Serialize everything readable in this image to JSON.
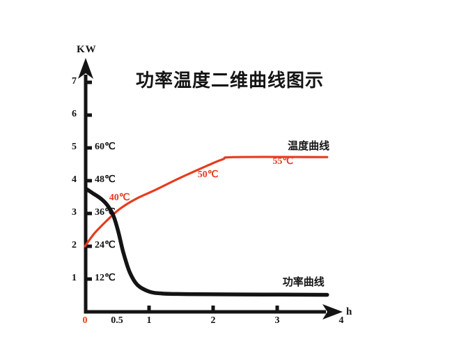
{
  "title": "功率温度二维曲线图示",
  "colors": {
    "temperature": "#e73b1e",
    "power": "#141414",
    "axis": "#141414",
    "background": "#ffffff"
  },
  "chart_data": {
    "type": "line",
    "title": "功率温度二维曲线图示",
    "xlabel": "h",
    "ylabel": "KW",
    "xlim": [
      0,
      4
    ],
    "ylim": [
      0,
      7.5
    ],
    "grid": false,
    "legend_position": "inline-labels",
    "y_axis_dual_scale": "1 KW tick = 12℃",
    "y_ticks": [
      {
        "kw": 1,
        "temp": "12℃"
      },
      {
        "kw": 2,
        "temp": "24℃"
      },
      {
        "kw": 3,
        "temp": "36℃"
      },
      {
        "kw": 4,
        "temp": "48℃"
      },
      {
        "kw": 5,
        "temp": "60℃"
      },
      {
        "kw": 6,
        "temp": ""
      },
      {
        "kw": 7,
        "temp": ""
      }
    ],
    "x_ticks": [
      {
        "value": 0,
        "label": "0",
        "red": true,
        "nub": false
      },
      {
        "value": 0.5,
        "label": "0.5",
        "red": false,
        "nub": false
      },
      {
        "value": 1,
        "label": "1",
        "red": false,
        "nub": true
      },
      {
        "value": 2,
        "label": "2",
        "red": false,
        "nub": true
      },
      {
        "value": 3,
        "label": "3",
        "red": false,
        "nub": true
      },
      {
        "value": 4,
        "label": "4",
        "red": false,
        "nub": false
      }
    ],
    "series": [
      {
        "name": "温度曲线",
        "color": "#e73b1e",
        "width": 3.2,
        "points": [
          [
            0,
            2.0
          ],
          [
            0.15,
            2.4
          ],
          [
            0.35,
            2.8
          ],
          [
            0.55,
            3.15
          ],
          [
            0.8,
            3.45
          ],
          [
            1.1,
            3.72
          ],
          [
            1.5,
            4.1
          ],
          [
            1.9,
            4.45
          ],
          [
            2.15,
            4.65
          ],
          [
            2.35,
            4.72
          ],
          [
            3.78,
            4.72
          ]
        ]
      },
      {
        "name": "功率曲线",
        "color": "#141414",
        "width": 5.5,
        "points": [
          [
            0.02,
            3.75
          ],
          [
            0.12,
            3.62
          ],
          [
            0.25,
            3.45
          ],
          [
            0.35,
            3.25
          ],
          [
            0.44,
            2.95
          ],
          [
            0.52,
            2.45
          ],
          [
            0.6,
            1.8
          ],
          [
            0.7,
            1.2
          ],
          [
            0.82,
            0.82
          ],
          [
            1.0,
            0.62
          ],
          [
            1.2,
            0.56
          ],
          [
            1.6,
            0.54
          ],
          [
            2.5,
            0.53
          ],
          [
            3.78,
            0.52
          ]
        ]
      }
    ],
    "annotations": [
      {
        "text": "40℃",
        "h": 0.54,
        "kw": 3.45,
        "color": "#e73b1e",
        "cjk": false
      },
      {
        "text": "50℃",
        "h": 1.92,
        "kw": 4.15,
        "color": "#e73b1e",
        "cjk": false
      },
      {
        "text": "55℃",
        "h": 3.09,
        "kw": 4.55,
        "color": "#e73b1e",
        "cjk": false
      },
      {
        "text": "温度曲线",
        "h": 3.49,
        "kw": 5.05,
        "color": "#141414",
        "cjk": true
      },
      {
        "text": "功率曲线",
        "h": 3.41,
        "kw": 0.9,
        "color": "#141414",
        "cjk": true
      }
    ]
  }
}
